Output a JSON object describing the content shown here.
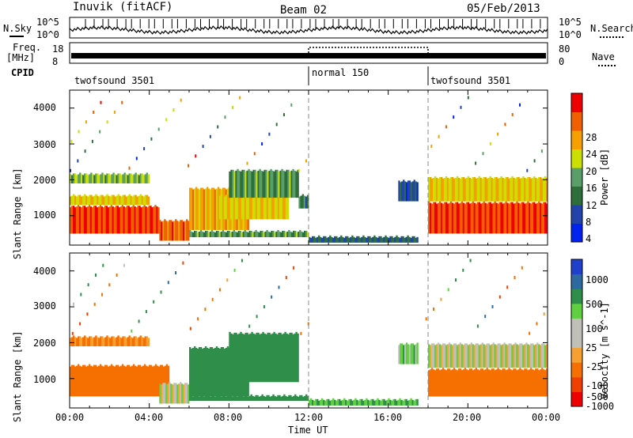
{
  "header": {
    "station": "Inuvik (fitACF)",
    "beam": "Beam 02",
    "date": "05/Feb/2013"
  },
  "noise_panel": {
    "left_label": "N.Sky",
    "right_label": "N.Search",
    "left_ticks": [
      "10^5",
      "10^0"
    ],
    "right_ticks": [
      "10^5",
      "10^0"
    ]
  },
  "freq_panel": {
    "left_label_1": "Freq.",
    "left_label_2": "[MHz]",
    "left_ticks": [
      "18",
      "8"
    ],
    "right_ticks": [
      "80",
      "0"
    ],
    "right_label": "Nave"
  },
  "cpid": {
    "label": "CPID",
    "segments": [
      {
        "name": "twofsound 3501",
        "start_hour": 0,
        "end_hour": 12
      },
      {
        "name": "normal 150",
        "start_hour": 12,
        "end_hour": 18
      },
      {
        "name": "twofsound 3501",
        "start_hour": 18,
        "end_hour": 24
      }
    ]
  },
  "x_axis": {
    "label": "Time UT",
    "ticks": [
      "00:00",
      "04:00",
      "08:00",
      "12:00",
      "16:00",
      "20:00",
      "00:00"
    ]
  },
  "colors": {
    "power_scale": [
      "#0022ee",
      "#2244aa",
      "#2e6e3a",
      "#5a9e6a",
      "#cce000",
      "#f5a000",
      "#f06000",
      "#ee0000"
    ],
    "velocity_scale": [
      "#ee0000",
      "#f04000",
      "#f57000",
      "#f5a030",
      "#c0c0b8",
      "#c0c0b8",
      "#60d040",
      "#2e8e4a",
      "#2e6aa0",
      "#2040cc"
    ]
  },
  "chart_data": [
    {
      "type": "heatmap",
      "title": "",
      "xlabel": "",
      "ylabel": "Slant Range [km]",
      "xlim": [
        0,
        24
      ],
      "ylim": [
        180,
        4500
      ],
      "yticks": [
        "1000",
        "2000",
        "3000",
        "4000"
      ],
      "colorbar": {
        "label": "Power [dB]",
        "ticks": [
          "28",
          "24",
          "20",
          "16",
          "12",
          "8",
          "4"
        ],
        "range": [
          0,
          30
        ]
      },
      "regions": [
        {
          "t0": 0,
          "t1": 4.5,
          "r0": 500,
          "r1": 1300,
          "value": 26
        },
        {
          "t0": 0,
          "t1": 4.0,
          "r0": 1300,
          "r1": 1600,
          "value": 18
        },
        {
          "t0": 0,
          "t1": 4.0,
          "r0": 1900,
          "r1": 2200,
          "value": 14
        },
        {
          "t0": 4.5,
          "t1": 6.0,
          "r0": 300,
          "r1": 900,
          "value": 24
        },
        {
          "t0": 6.0,
          "t1": 12.0,
          "r0": 400,
          "r1": 600,
          "value": 12
        },
        {
          "t0": 6.0,
          "t1": 9.0,
          "r0": 600,
          "r1": 1800,
          "value": 20
        },
        {
          "t0": 7.5,
          "t1": 11.0,
          "r0": 900,
          "r1": 1600,
          "value": 18
        },
        {
          "t0": 8.0,
          "t1": 11.5,
          "r0": 1500,
          "r1": 2300,
          "value": 12
        },
        {
          "t0": 11.5,
          "t1": 12.0,
          "r0": 1200,
          "r1": 1600,
          "value": 10
        },
        {
          "t0": 12.0,
          "t1": 17.5,
          "r0": 250,
          "r1": 450,
          "value": 8
        },
        {
          "t0": 16.5,
          "t1": 17.5,
          "r0": 1400,
          "r1": 2000,
          "value": 6
        },
        {
          "t0": 18.0,
          "t1": 24.0,
          "r0": 500,
          "r1": 1400,
          "value": 26
        },
        {
          "t0": 18.0,
          "t1": 24.0,
          "r0": 1400,
          "r1": 2100,
          "value": 18
        }
      ]
    },
    {
      "type": "heatmap",
      "title": "",
      "xlabel": "Time UT",
      "ylabel": "Slant Range [km]",
      "xlim": [
        0,
        24
      ],
      "ylim": [
        180,
        4500
      ],
      "yticks": [
        "1000",
        "2000",
        "3000",
        "4000"
      ],
      "colorbar": {
        "label": "Velocity [m s^-1]",
        "ticks": [
          "1000",
          "500",
          "100",
          "25",
          "-25",
          "-100",
          "-500",
          "-1000"
        ],
        "range": [
          -1000,
          1000
        ]
      },
      "regions": [
        {
          "t0": 0,
          "t1": 5.0,
          "r0": 500,
          "r1": 1400,
          "value": -300
        },
        {
          "t0": 0,
          "t1": 4.0,
          "r0": 1900,
          "r1": 2200,
          "value": -100
        },
        {
          "t0": 4.5,
          "t1": 6.0,
          "r0": 300,
          "r1": 900,
          "value": 0
        },
        {
          "t0": 6.0,
          "t1": 9.0,
          "r0": 500,
          "r1": 1900,
          "value": 200
        },
        {
          "t0": 8.0,
          "t1": 11.5,
          "r0": 900,
          "r1": 2300,
          "value": 200
        },
        {
          "t0": 6.0,
          "t1": 12.0,
          "r0": 380,
          "r1": 560,
          "value": 200
        },
        {
          "t0": 12.0,
          "t1": 17.5,
          "r0": 250,
          "r1": 450,
          "value": 100
        },
        {
          "t0": 16.5,
          "t1": 17.5,
          "r0": 1400,
          "r1": 2000,
          "value": 60
        },
        {
          "t0": 18.0,
          "t1": 24.0,
          "r0": 500,
          "r1": 1300,
          "value": -300
        },
        {
          "t0": 18.0,
          "t1": 24.0,
          "r0": 1300,
          "r1": 2000,
          "value": 0
        }
      ]
    }
  ]
}
